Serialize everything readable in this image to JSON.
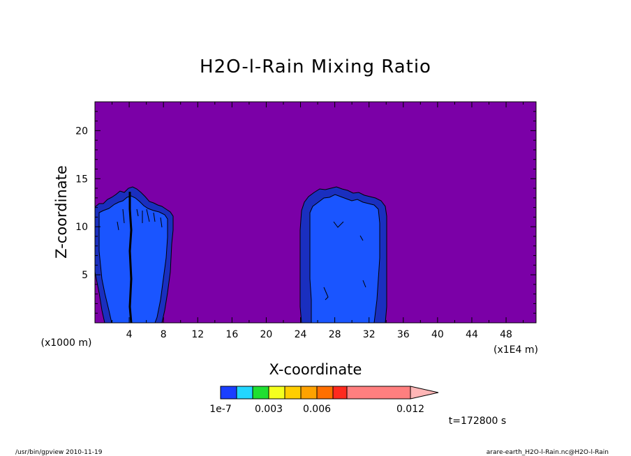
{
  "chart_data": {
    "type": "contour",
    "title": "H2O-l-Rain Mixing Ratio",
    "xlabel": "X-coordinate",
    "ylabel": "Z-coordinate",
    "x_unit_note": "(x1E4 m)",
    "y_unit_note": "(x1000 m)",
    "xlim": [
      0,
      51.5
    ],
    "ylim": [
      0,
      23
    ],
    "x_ticks": [
      4,
      8,
      12,
      16,
      20,
      24,
      28,
      32,
      36,
      40,
      44,
      48
    ],
    "y_ticks": [
      5,
      10,
      15,
      20
    ],
    "grid": false,
    "background_color": "#7b00a7",
    "colorbar": {
      "colors": [
        "#1a3fff",
        "#22d6ff",
        "#1fdf32",
        "#f4ff1e",
        "#ffce00",
        "#ffa200",
        "#ff6f00",
        "#ff2a1e",
        "#ff7f7f",
        "#ffb6b6"
      ],
      "bounds": [
        1e-07,
        0.0015,
        0.003,
        0.0045,
        0.006,
        0.0075,
        0.009,
        0.012
      ],
      "tick_labels": [
        {
          "value": 1e-07,
          "label": "1e-7"
        },
        {
          "value": 0.003,
          "label": "0.003"
        },
        {
          "value": 0.006,
          "label": "0.006"
        },
        {
          "value": 0.012,
          "label": "0.012"
        }
      ],
      "extend": "max"
    },
    "regions": [
      {
        "name": "left-cloud",
        "outer_color": "#1a2fbf",
        "inner_color": "#1a55ff",
        "x_range": [
          0,
          9.5
        ],
        "top": 14,
        "core_x": 4.3
      },
      {
        "name": "right-cloud",
        "outer_color": "#1a2fbf",
        "inner_color": "#1a55ff",
        "x_range": [
          24,
          34
        ],
        "top": 14.2,
        "core_x": 28
      }
    ]
  },
  "time_label": "t=172800 s",
  "footer": {
    "left": "/usr/bin/gpview   2010-11-19",
    "right": "arare-earth_H2O-l-Rain.nc@H2O-l-Rain"
  }
}
